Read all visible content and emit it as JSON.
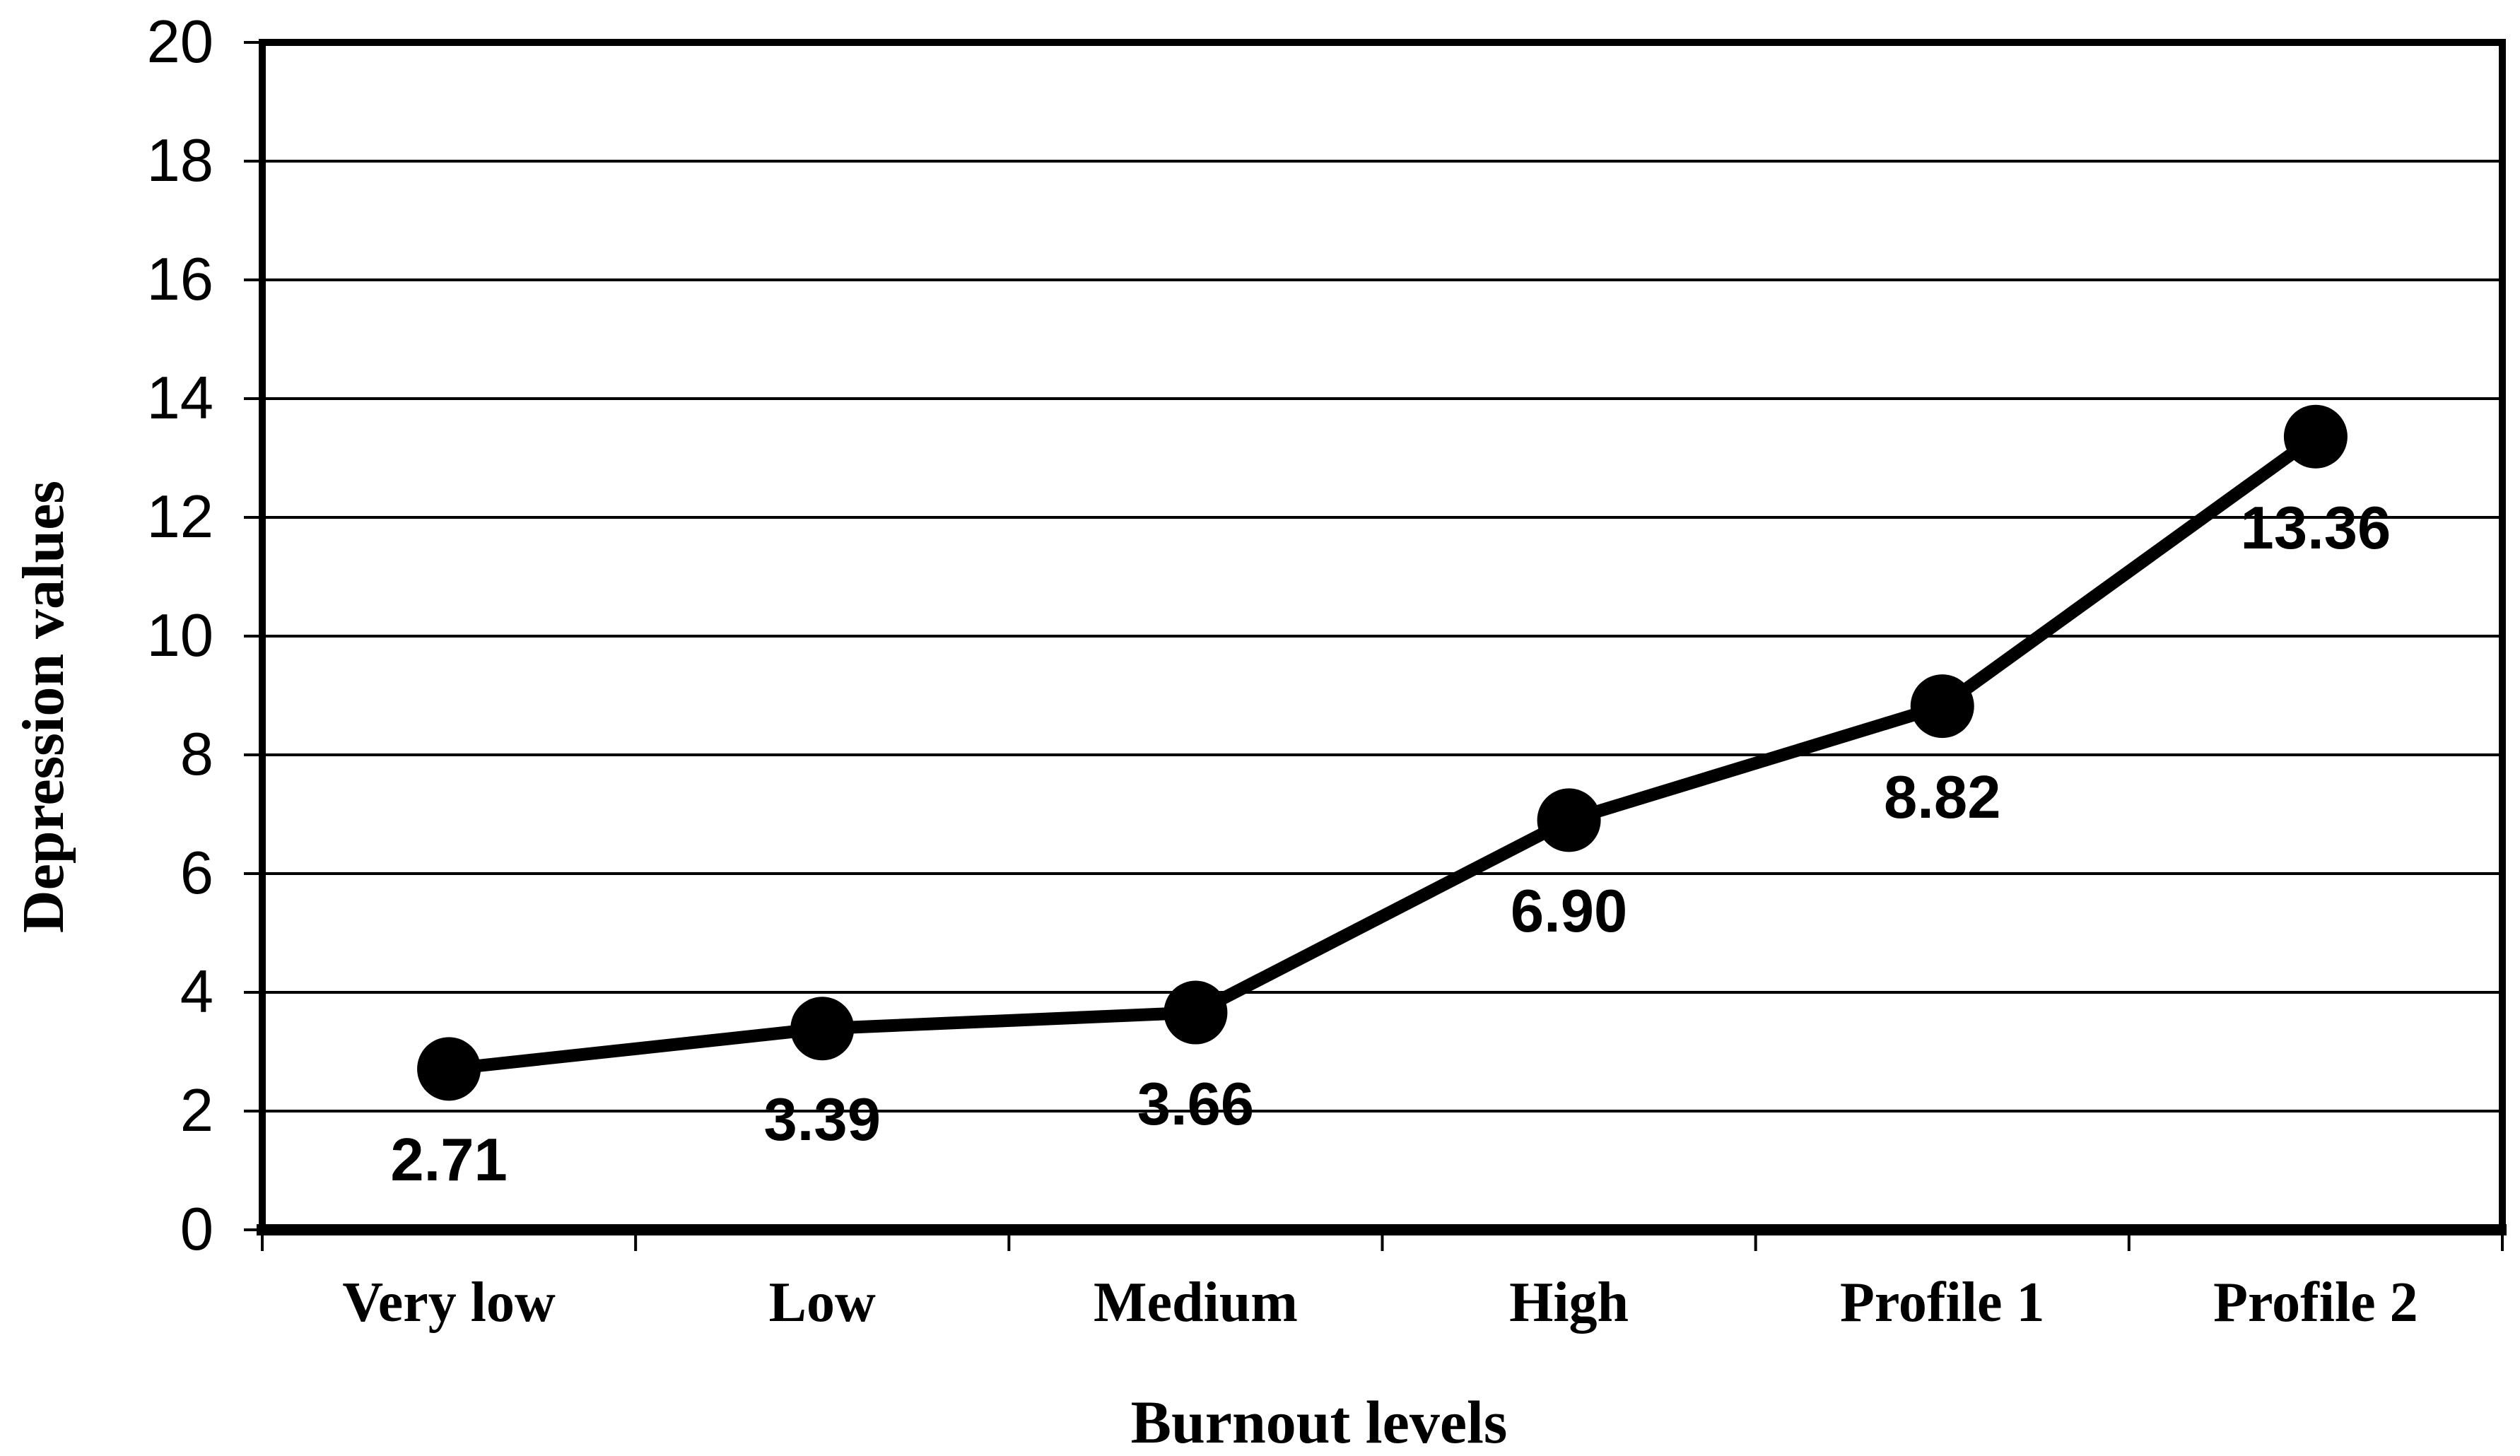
{
  "chart_data": {
    "type": "line",
    "title": "",
    "xlabel": "Burnout levels",
    "ylabel": "Depression values",
    "categories": [
      "Very low",
      "Low",
      "Medium",
      "High",
      "Profile 1",
      "Profile 2"
    ],
    "series": [
      {
        "name": "Depression values",
        "values": [
          2.71,
          3.39,
          3.66,
          6.9,
          8.82,
          13.36
        ]
      }
    ],
    "point_labels": [
      "2.71",
      "3.39",
      "3.66",
      "6.90",
      "8.82",
      "13.36"
    ],
    "ylim": [
      0,
      20
    ],
    "yticks": [
      0,
      2,
      4,
      6,
      8,
      10,
      12,
      14,
      16,
      18,
      20
    ],
    "grid": "horizontal",
    "legend": "none",
    "line_color": "#000000",
    "grid_color": "#000000",
    "background": "#ffffff",
    "marker": "filled-circle"
  }
}
